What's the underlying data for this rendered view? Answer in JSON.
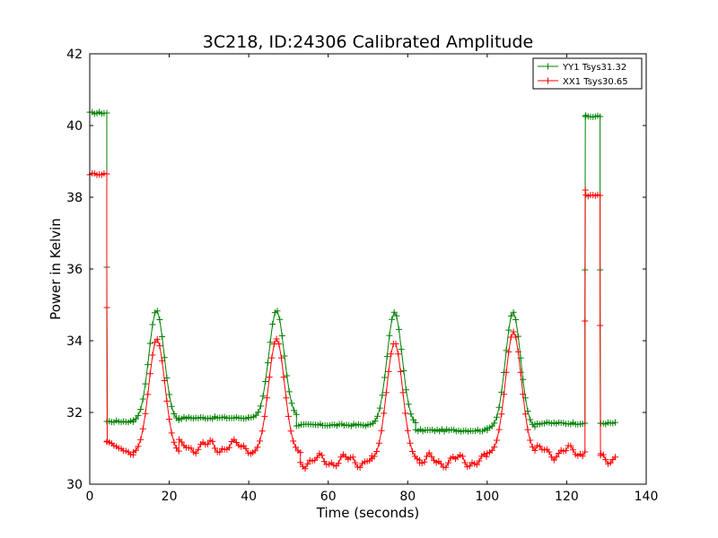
{
  "chart_data": {
    "type": "line",
    "title": "3C218, ID:24306 Calibrated Amplitude",
    "xlabel": "Time (seconds)",
    "ylabel": "Power in Kelvin",
    "xlim": [
      0,
      140
    ],
    "ylim": [
      30,
      42
    ],
    "xticks": [
      0,
      20,
      40,
      60,
      80,
      100,
      120,
      140
    ],
    "yticks": [
      30,
      32,
      34,
      36,
      38,
      40,
      42
    ],
    "grid": false,
    "legend_position": "top-right",
    "marker": "+",
    "series": [
      {
        "name": "YY1 Tsys31.32",
        "color": "#008000",
        "segments": [
          {
            "type": "flat",
            "x": [
              0,
              4
            ],
            "y": 40.35
          },
          {
            "type": "step",
            "x": 4.3,
            "from": 40.35,
            "to": 31.75
          },
          {
            "type": "flat",
            "x": [
              4.3,
              11
            ],
            "y": 31.75
          },
          {
            "type": "peak",
            "x": [
              11,
              22.5
            ],
            "center": 16.8,
            "peak": 34.85,
            "base": 31.75,
            "width": 1.9
          },
          {
            "type": "flat",
            "x": [
              22.5,
              40
            ],
            "y": 31.85
          },
          {
            "type": "peak",
            "x": [
              40,
              52
            ],
            "center": 47.0,
            "peak": 34.85,
            "base": 31.85,
            "width": 1.9
          },
          {
            "type": "flat",
            "x": [
              52,
              70
            ],
            "y": 31.65
          },
          {
            "type": "peak",
            "x": [
              70,
              82
            ],
            "center": 76.7,
            "peak": 34.8,
            "base": 31.65,
            "width": 1.9
          },
          {
            "type": "flat",
            "x": [
              82,
              100
            ],
            "y": 31.5
          },
          {
            "type": "peak",
            "x": [
              100,
              112
            ],
            "center": 106.5,
            "peak": 34.8,
            "base": 31.55,
            "width": 1.9
          },
          {
            "type": "flat",
            "x": [
              112,
              124.5
            ],
            "y": 31.7
          },
          {
            "type": "step",
            "x": 124.6,
            "from": 31.7,
            "to": 40.25
          },
          {
            "type": "flat",
            "x": [
              124.8,
              128.3
            ],
            "y": 40.25
          },
          {
            "type": "step",
            "x": 128.4,
            "from": 40.25,
            "to": 31.7
          },
          {
            "type": "flat",
            "x": [
              128.6,
              132.5
            ],
            "y": 31.7
          }
        ]
      },
      {
        "name": "XX1 Tsys30.65",
        "color": "#ff0000",
        "segments": [
          {
            "type": "flat",
            "x": [
              0,
              4
            ],
            "y": 38.65
          },
          {
            "type": "step",
            "x": 4.3,
            "from": 38.65,
            "to": 31.2
          },
          {
            "type": "slope",
            "x": [
              4.3,
              11
            ],
            "from": 31.2,
            "to": 30.8
          },
          {
            "type": "peak",
            "x": [
              11,
              22.5
            ],
            "center": 16.9,
            "peak": 34.05,
            "base": 30.85,
            "width": 2.0
          },
          {
            "type": "wave",
            "x": [
              22.5,
              41
            ],
            "y": 31.05
          },
          {
            "type": "peak",
            "x": [
              41,
              53
            ],
            "center": 47.0,
            "peak": 34.05,
            "base": 30.85,
            "width": 2.0
          },
          {
            "type": "wave",
            "x": [
              53,
              71
            ],
            "y": 30.65
          },
          {
            "type": "peak",
            "x": [
              71,
              83
            ],
            "center": 76.7,
            "peak": 33.95,
            "base": 30.65,
            "width": 2.0
          },
          {
            "type": "wave",
            "x": [
              83,
              100
            ],
            "y": 30.65
          },
          {
            "type": "peak",
            "x": [
              100,
              112
            ],
            "center": 106.6,
            "peak": 34.25,
            "base": 30.85,
            "width": 2.0
          },
          {
            "type": "wave",
            "x": [
              112,
              124.5
            ],
            "y": 30.9
          },
          {
            "type": "step",
            "x": 124.6,
            "from": 30.9,
            "to": 38.2
          },
          {
            "type": "flat",
            "x": [
              124.8,
              128.3
            ],
            "y": 38.05
          },
          {
            "type": "step",
            "x": 128.4,
            "from": 38.05,
            "to": 30.8
          },
          {
            "type": "wave",
            "x": [
              128.6,
              132.5
            ],
            "y": 30.75
          }
        ]
      }
    ]
  }
}
